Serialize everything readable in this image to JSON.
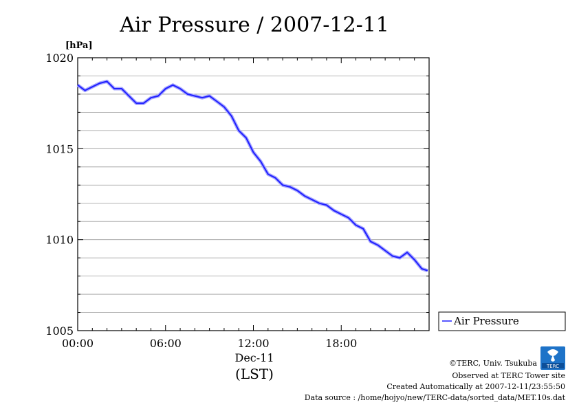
{
  "chart_data": {
    "type": "line",
    "title": "Air Pressure / 2007-12-11",
    "ylabel": "[hPa]",
    "ylim": [
      1005,
      1020
    ],
    "yticks": [
      "1020",
      "1015",
      "1010",
      "1005"
    ],
    "xticks": [
      "00:00",
      "06:00",
      "12:00",
      "18:00"
    ],
    "xlim_hours": [
      0,
      24
    ],
    "date_label": "Dec-11",
    "xlabel": "(LST)",
    "grid": "horizontal",
    "legend_position": "right",
    "series": [
      {
        "name": "Air Pressure",
        "color": "#2020ff",
        "x": [
          0.0,
          0.5,
          1.0,
          1.5,
          2.0,
          2.5,
          3.0,
          3.5,
          4.0,
          4.5,
          5.0,
          5.5,
          6.0,
          6.5,
          7.0,
          7.5,
          8.0,
          8.5,
          9.0,
          9.5,
          10.0,
          10.5,
          11.0,
          11.5,
          12.0,
          12.5,
          13.0,
          13.5,
          14.0,
          14.5,
          15.0,
          15.5,
          16.0,
          16.5,
          17.0,
          17.5,
          18.0,
          18.5,
          19.0,
          19.5,
          20.0,
          20.5,
          21.0,
          21.5,
          22.0,
          22.5,
          23.0,
          23.5,
          23.9
        ],
        "y": [
          1018.5,
          1018.2,
          1018.4,
          1018.6,
          1018.7,
          1018.3,
          1018.3,
          1017.9,
          1017.5,
          1017.5,
          1017.8,
          1017.9,
          1018.3,
          1018.5,
          1018.3,
          1018.0,
          1017.9,
          1017.8,
          1017.9,
          1017.6,
          1017.3,
          1016.8,
          1016.0,
          1015.6,
          1014.8,
          1014.3,
          1013.6,
          1013.4,
          1013.0,
          1012.9,
          1012.7,
          1012.4,
          1012.2,
          1012.0,
          1011.9,
          1011.6,
          1011.4,
          1011.2,
          1010.8,
          1010.6,
          1009.9,
          1009.7,
          1009.4,
          1009.1,
          1009.0,
          1009.3,
          1008.9,
          1008.4,
          1008.3
        ]
      }
    ]
  },
  "credits": {
    "copyright": "©TERC, Univ. Tsukuba",
    "observed": "Observed at TERC Tower site",
    "created": "Created Automatically at 2007-12-11/23:55:50",
    "source": "Data source : /home/hojyo/new/TERC-data/sorted_data/MET.10s.dat",
    "logo_text": "TERC"
  }
}
